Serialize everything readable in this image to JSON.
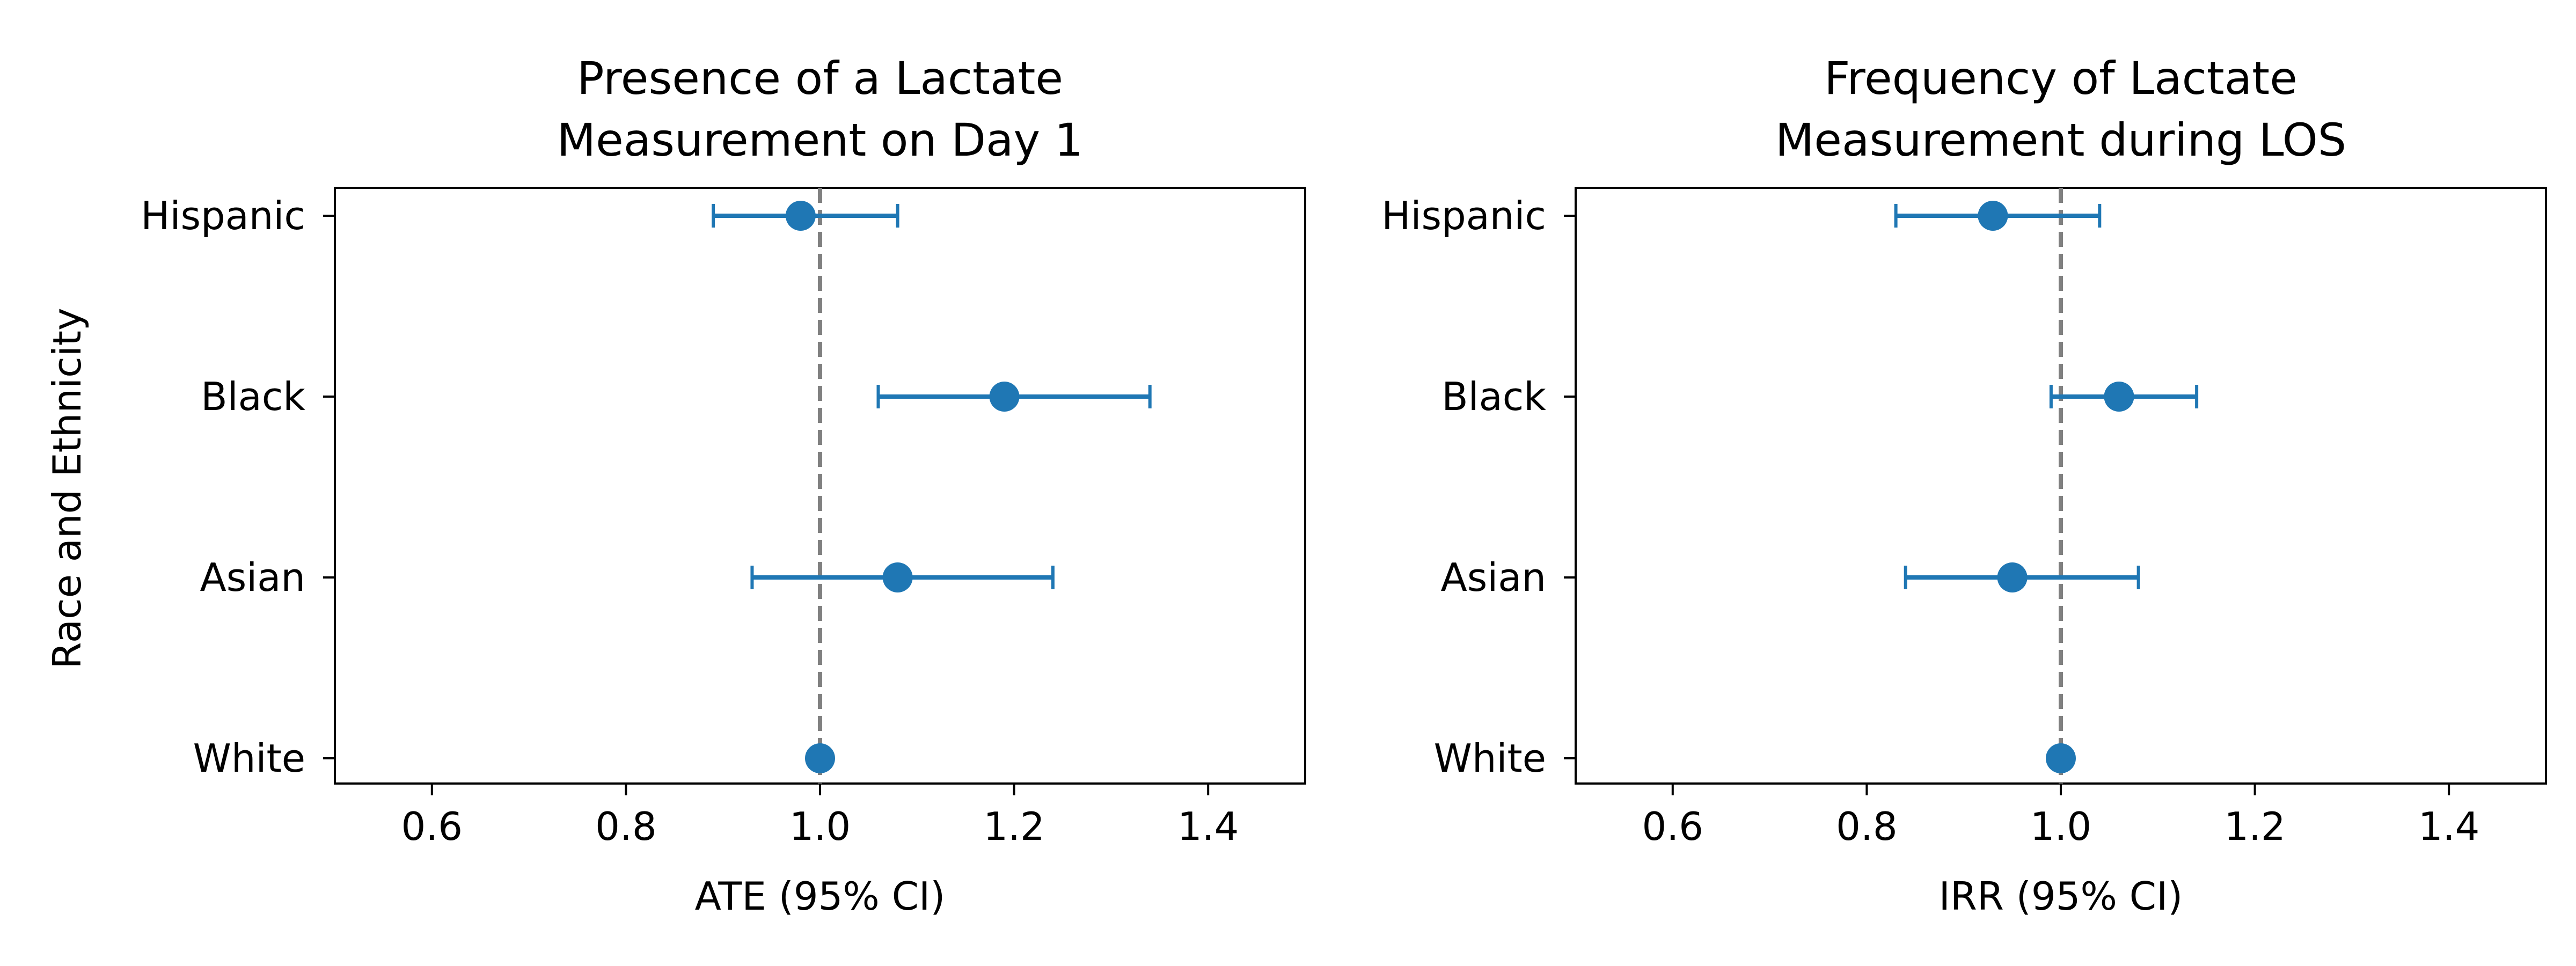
{
  "figure": {
    "shared_ylabel": "Race and Ethnicity"
  },
  "chart_data": [
    {
      "type": "scatter",
      "title_lines": [
        "Presence of a Lactate",
        "Measurement on Day 1"
      ],
      "xlabel": "ATE (95% CI)",
      "ylabel": "Race and Ethnicity",
      "xlim": [
        0.5,
        1.5
      ],
      "xticks": [
        0.6,
        0.8,
        1.0,
        1.2,
        1.4
      ],
      "xtick_labels": [
        "0.6",
        "0.8",
        "1.0",
        "1.2",
        "1.4"
      ],
      "categories": [
        "White",
        "Asian",
        "Black",
        "Hispanic"
      ],
      "reference_line": 1.0,
      "points": [
        {
          "label": "White",
          "estimate": 1.0,
          "lower": null,
          "upper": null
        },
        {
          "label": "Asian",
          "estimate": 1.08,
          "lower": 0.93,
          "upper": 1.24
        },
        {
          "label": "Black",
          "estimate": 1.19,
          "lower": 1.06,
          "upper": 1.34
        },
        {
          "label": "Hispanic",
          "estimate": 0.98,
          "lower": 0.89,
          "upper": 1.08
        }
      ],
      "grid": false,
      "color": "#1f77b4",
      "reference_color": "#808080"
    },
    {
      "type": "scatter",
      "title_lines": [
        "Frequency of Lactate",
        "Measurement during LOS"
      ],
      "xlabel": "IRR (95% CI)",
      "xlim": [
        0.5,
        1.5
      ],
      "xticks": [
        0.6,
        0.8,
        1.0,
        1.2,
        1.4
      ],
      "xtick_labels": [
        "0.6",
        "0.8",
        "1.0",
        "1.2",
        "1.4"
      ],
      "categories": [
        "White",
        "Asian",
        "Black",
        "Hispanic"
      ],
      "reference_line": 1.0,
      "points": [
        {
          "label": "White",
          "estimate": 1.0,
          "lower": null,
          "upper": null
        },
        {
          "label": "Asian",
          "estimate": 0.95,
          "lower": 0.84,
          "upper": 1.08
        },
        {
          "label": "Black",
          "estimate": 1.06,
          "lower": 0.99,
          "upper": 1.14
        },
        {
          "label": "Hispanic",
          "estimate": 0.93,
          "lower": 0.83,
          "upper": 1.04
        }
      ],
      "grid": false,
      "color": "#1f77b4",
      "reference_color": "#808080"
    }
  ]
}
